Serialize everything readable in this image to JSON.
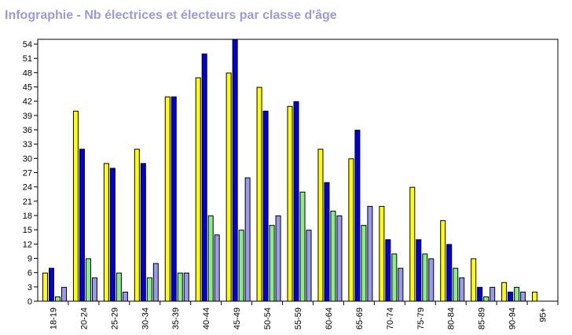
{
  "title": "Infographie - Nb électrices et électeurs par classe d'âge",
  "chart_data": {
    "type": "bar",
    "title": "Infographie - Nb électrices et électeurs par classe d'âge",
    "categories": [
      "18-19",
      "20-24",
      "25-29",
      "30-34",
      "35-39",
      "40-44",
      "45-49",
      "50-54",
      "55-59",
      "60-64",
      "65-69",
      "70-74",
      "75-79",
      "80-84",
      "85-89",
      "90-94",
      "95+"
    ],
    "series": [
      {
        "color": "#ffff00",
        "values": [
          6,
          40,
          29,
          32,
          43,
          47,
          48,
          45,
          41,
          32,
          30,
          20,
          24,
          17,
          9,
          4,
          2
        ]
      },
      {
        "color": "#0000dd",
        "values": [
          7,
          32,
          28,
          29,
          43,
          52,
          55,
          40,
          42,
          25,
          36,
          13,
          13,
          12,
          3,
          2,
          0
        ]
      },
      {
        "color": "#88ee88",
        "values": [
          1,
          9,
          6,
          5,
          6,
          18,
          15,
          16,
          23,
          19,
          16,
          10,
          10,
          7,
          1,
          3,
          0
        ]
      },
      {
        "color": "#9999ee",
        "values": [
          3,
          5,
          2,
          8,
          6,
          14,
          26,
          18,
          15,
          18,
          20,
          7,
          9,
          5,
          3,
          2,
          0
        ]
      }
    ],
    "yticks": [
      0,
      3,
      6,
      9,
      12,
      15,
      18,
      21,
      24,
      27,
      30,
      33,
      36,
      39,
      42,
      45,
      48,
      51,
      54
    ],
    "ylim": [
      0,
      55
    ],
    "xlabel": "",
    "ylabel": "",
    "grid": false,
    "legend": "none"
  }
}
